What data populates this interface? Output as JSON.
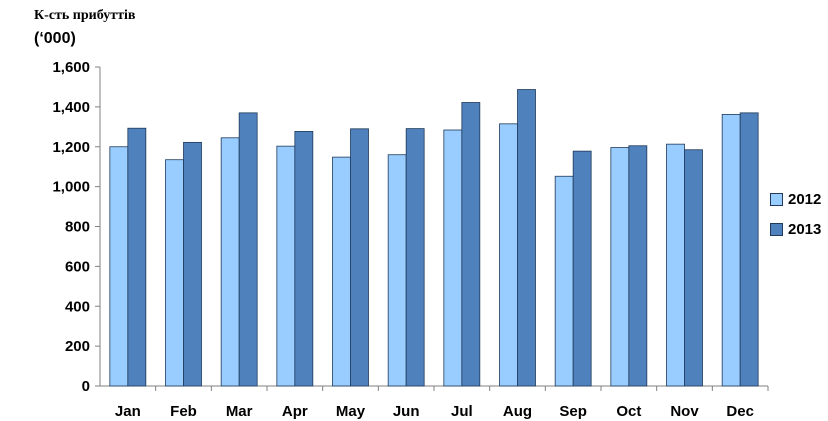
{
  "chart_data": {
    "type": "bar",
    "title": "К-сть прибуттів",
    "unit_label": "(‘000)",
    "categories": [
      "Jan",
      "Feb",
      "Mar",
      "Apr",
      "May",
      "Jun",
      "Jul",
      "Aug",
      "Sep",
      "Oct",
      "Nov",
      "Dec"
    ],
    "series": [
      {
        "name": "2012",
        "color": "#99ccff",
        "values": [
          1200,
          1135,
          1245,
          1203,
          1148,
          1160,
          1284,
          1315,
          1052,
          1196,
          1213,
          1362
        ]
      },
      {
        "name": "2013",
        "color": "#4f81bd",
        "values": [
          1293,
          1222,
          1370,
          1277,
          1290,
          1291,
          1422,
          1487,
          1178,
          1205,
          1185,
          1370
        ]
      }
    ],
    "ylim": [
      0,
      1600
    ],
    "yticks": [
      0,
      200,
      400,
      600,
      800,
      1000,
      1200,
      1400,
      1600
    ],
    "ytick_labels": [
      "0",
      "200",
      "400",
      "600",
      "800",
      "1,000",
      "1,200",
      "1,400",
      "1,600"
    ],
    "grid": false,
    "legend_position": "right"
  }
}
